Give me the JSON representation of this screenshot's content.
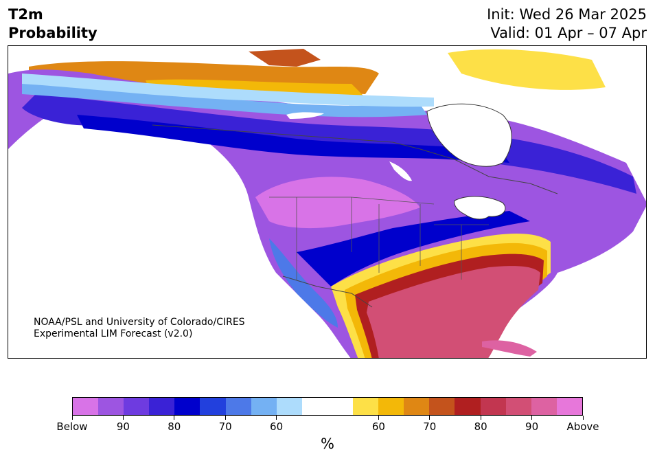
{
  "title": {
    "variable": "T2m",
    "kind": "Probability",
    "init": "Init: Wed 26 Mar 2025",
    "valid": "Valid: 01 Apr – 07 Apr"
  },
  "credit": {
    "line1": "NOAA/PSL and University of Colorado/CIRES",
    "line2": "Experimental LIM Forecast (v2.0)"
  },
  "colorbar": {
    "unit": "%",
    "colors": [
      "#d873e7",
      "#9d55e1",
      "#6e3be0",
      "#3a22d6",
      "#0000cc",
      "#2240dd",
      "#4d79e8",
      "#74b1f3",
      "#addcfc",
      "#ffffff",
      "#ffffff",
      "#fde047",
      "#f3b808",
      "#df8714",
      "#c4531c",
      "#b01f20",
      "#c23650",
      "#d24f75",
      "#dd62a2",
      "#e777da"
    ],
    "ticks": [
      {
        "label": "Below",
        "index": 0
      },
      {
        "label": "90",
        "index": 2
      },
      {
        "label": "80",
        "index": 4
      },
      {
        "label": "70",
        "index": 6
      },
      {
        "label": "60",
        "index": 8
      },
      {
        "label": "60",
        "index": 12
      },
      {
        "label": "70",
        "index": 14
      },
      {
        "label": "80",
        "index": 16
      },
      {
        "label": "90",
        "index": 18
      },
      {
        "label": "Above",
        "index": 20
      }
    ]
  }
}
